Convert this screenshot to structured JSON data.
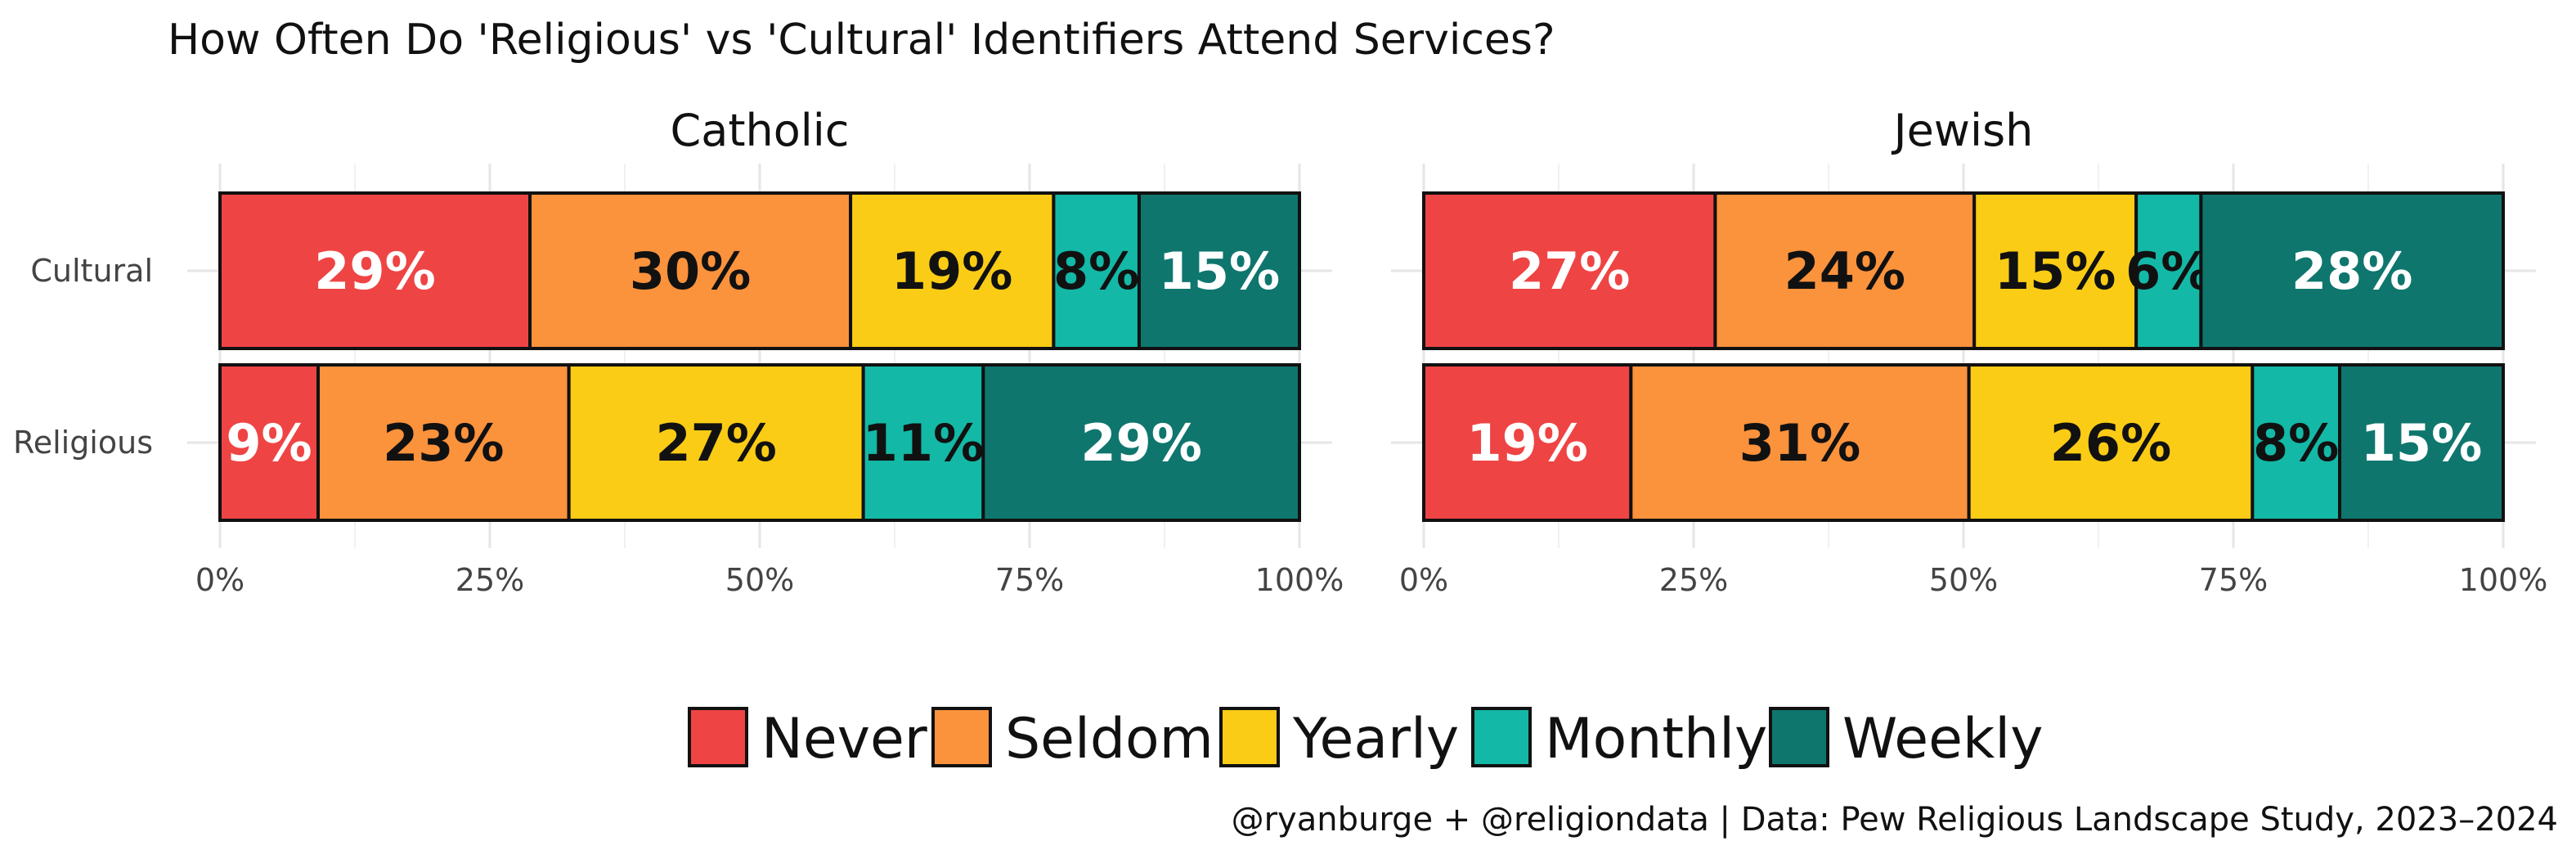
{
  "chart_data": {
    "type": "bar",
    "orientation": "horizontal",
    "stacked": "percent",
    "title": "How Often Do 'Religious' vs 'Cultural' Identifiers Attend Services?",
    "caption": "@ryanburge + @religiondata | Data: Pew Religious Landscape Study, 2023–2024",
    "categories": [
      "Cultural",
      "Religious"
    ],
    "xlim": [
      0,
      100
    ],
    "xticks": [
      "0%",
      "25%",
      "50%",
      "75%",
      "100%"
    ],
    "grid": true,
    "legend_position": "bottom",
    "series_names": [
      "Never",
      "Seldom",
      "Yearly",
      "Monthly",
      "Weekly"
    ],
    "colors": [
      "#EF4444",
      "#FB923C",
      "#FACC15",
      "#14B8A6",
      "#0F766E"
    ],
    "label_colors": [
      "#ffffff",
      "#111111",
      "#111111",
      "#111111",
      "#ffffff"
    ],
    "facets": [
      {
        "name": "Catholic",
        "rows": [
          {
            "category": "Cultural",
            "values": [
              29,
              30,
              19,
              8,
              15
            ],
            "labels": [
              "29%",
              "30%",
              "19%",
              "8%",
              "15%"
            ]
          },
          {
            "category": "Religious",
            "values": [
              9,
              23,
              27,
              11,
              29
            ],
            "labels": [
              "9%",
              "23%",
              "27%",
              "11%",
              "29%"
            ]
          }
        ]
      },
      {
        "name": "Jewish",
        "rows": [
          {
            "category": "Cultural",
            "values": [
              27,
              24,
              15,
              6,
              28
            ],
            "labels": [
              "27%",
              "24%",
              "15%",
              "6%",
              "28%"
            ]
          },
          {
            "category": "Religious",
            "values": [
              19,
              31,
              26,
              8,
              15
            ],
            "labels": [
              "19%",
              "31%",
              "26%",
              "8%",
              "15%"
            ]
          }
        ]
      }
    ]
  }
}
